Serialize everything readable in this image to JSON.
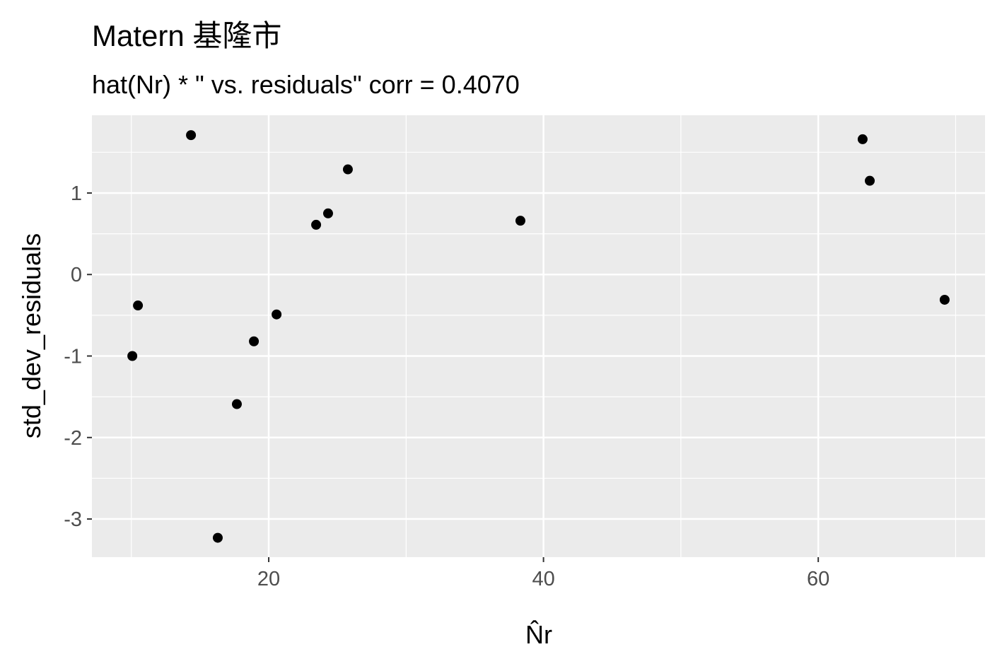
{
  "chart_data": {
    "type": "scatter",
    "title": "Matern 基隆市",
    "subtitle": "hat(Nr) * \"  vs. residuals\" corr = 0.4070",
    "x_label": "N̂r",
    "y_label": "std_dev_residuals",
    "x": [
      14.34,
      10.48,
      10.07,
      17.68,
      16.29,
      18.92,
      20.57,
      23.45,
      24.32,
      25.76,
      38.32,
      63.23,
      63.75,
      69.2
    ],
    "series": [
      {
        "values": [
          1.71,
          -0.38,
          -1.0,
          -1.59,
          -3.23,
          -0.82,
          -0.49,
          0.61,
          0.75,
          1.29,
          0.66,
          1.66,
          1.15,
          -0.31
        ],
        "color": "#000000"
      }
    ],
    "xlim": [
      7.13,
      72.14
    ],
    "ylim": [
      -3.468,
      1.954
    ],
    "xticks": [
      20,
      40,
      60
    ],
    "yticks": [
      -3,
      -2,
      -1,
      0,
      1
    ],
    "grid": true
  }
}
